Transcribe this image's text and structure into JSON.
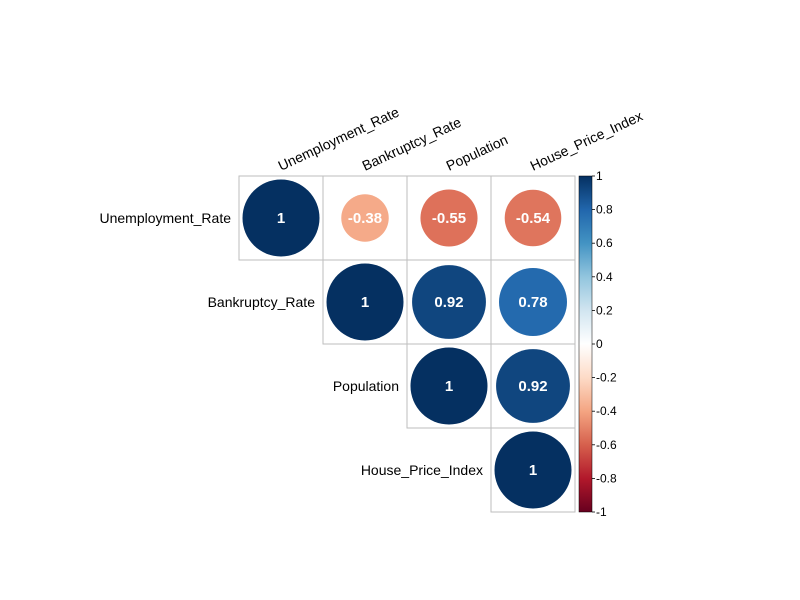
{
  "chart_data": {
    "type": "heatmap",
    "style": "corrplot-circle-upper",
    "variables": [
      "Unemployment_Rate",
      "Bankruptcy_Rate",
      "Population",
      "House_Price_Index"
    ],
    "matrix": [
      [
        1,
        -0.38,
        -0.55,
        -0.54
      ],
      [
        null,
        1,
        0.92,
        0.78
      ],
      [
        null,
        null,
        1,
        0.92
      ],
      [
        null,
        null,
        null,
        1
      ]
    ],
    "cell_labels": [
      [
        "1",
        "-0.38",
        "-0.55",
        "-0.54"
      ],
      [
        "",
        "1",
        "0.92",
        "0.78"
      ],
      [
        "",
        "",
        "1",
        "0.92"
      ],
      [
        "",
        "",
        "",
        "1"
      ]
    ],
    "colorbar": {
      "range": [
        -1,
        1
      ],
      "ticks": [
        "1",
        "0.8",
        "0.6",
        "0.4",
        "0.2",
        "0",
        "-0.2",
        "-0.4",
        "-0.6",
        "-0.8",
        "-1"
      ],
      "tick_values": [
        1,
        0.8,
        0.6,
        0.4,
        0.2,
        0,
        -0.2,
        -0.4,
        -0.6,
        -0.8,
        -1
      ],
      "colors": [
        "#67001F",
        "#B2182B",
        "#D6604D",
        "#F4A582",
        "#FDDBC7",
        "#FFFFFF",
        "#D1E5F0",
        "#92C5DE",
        "#4393C3",
        "#2166AC",
        "#053061"
      ]
    },
    "title": "",
    "xlabel": "",
    "ylabel": ""
  }
}
